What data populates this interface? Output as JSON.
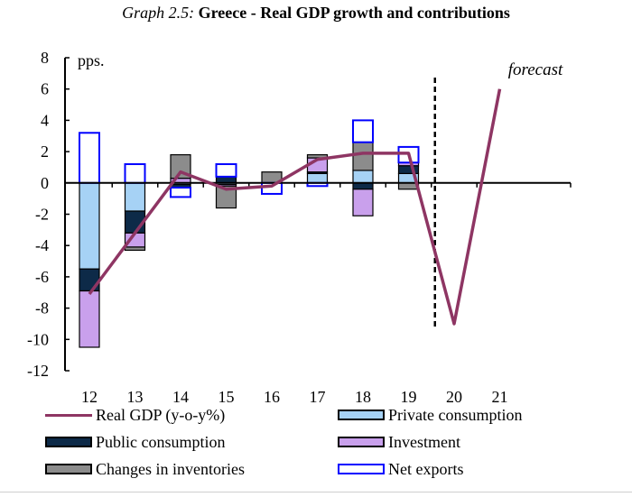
{
  "title": {
    "prefix": "Graph 2.5:",
    "main": "Greece - Real GDP growth and contributions"
  },
  "colors": {
    "private_consumption": "#a6d2f5",
    "public_consumption": "#0d2a48",
    "investment": "#c9a0ec",
    "changes_in_inventories": "#8c8c8c",
    "net_exports": "#ffffff",
    "net_exports_border": "#0000ff",
    "real_gdp_line": "#8e3563"
  },
  "chart_data": {
    "type": "bar",
    "stacked": true,
    "unit_label": "pps.",
    "annotation": "forecast",
    "forecast_divider_after": "19",
    "categories": [
      "12",
      "13",
      "14",
      "15",
      "16",
      "17",
      "18",
      "19",
      "20",
      "21"
    ],
    "ylim": [
      -12,
      8
    ],
    "yticks": [
      8,
      6,
      4,
      2,
      0,
      -2,
      -4,
      -6,
      -8,
      -10,
      -12
    ],
    "series": [
      {
        "name": "Private consumption",
        "key": "private_consumption",
        "kind": "bar",
        "values": [
          -5.5,
          -1.8,
          -0.1,
          -0.1,
          0,
          0.6,
          0.8,
          0.6,
          null,
          null
        ]
      },
      {
        "name": "Public consumption",
        "key": "public_consumption",
        "kind": "bar",
        "values": [
          -1.4,
          -1.4,
          -0.2,
          0.4,
          0,
          0.1,
          -0.4,
          0.5,
          null,
          null
        ]
      },
      {
        "name": "Investment",
        "key": "investment",
        "kind": "bar",
        "values": [
          -3.6,
          -0.9,
          0.3,
          -0.1,
          0,
          0.9,
          -1.7,
          0.2,
          null,
          null
        ]
      },
      {
        "name": "Changes in inventories",
        "key": "changes_in_inventories",
        "kind": "bar",
        "values": [
          0,
          -0.2,
          1.5,
          -1.4,
          0.7,
          0.2,
          1.8,
          -0.4,
          null,
          null
        ]
      },
      {
        "name": "Net exports",
        "key": "net_exports",
        "kind": "bar",
        "values": [
          3.2,
          1.2,
          -0.6,
          0.8,
          -0.7,
          -0.2,
          1.4,
          1.0,
          null,
          null
        ]
      },
      {
        "name": "Real GDP (y-o-y%)",
        "key": "real_gdp_line",
        "kind": "line",
        "values": [
          -7.1,
          -3.2,
          0.7,
          -0.4,
          -0.2,
          1.5,
          1.9,
          1.9,
          -9.0,
          6.0
        ]
      }
    ]
  },
  "legend": [
    {
      "label": "Real GDP (y-o-y%)",
      "key": "real_gdp_line",
      "style": "line"
    },
    {
      "label": "Private consumption",
      "key": "private_consumption",
      "style": "box"
    },
    {
      "label": "Public consumption",
      "key": "public_consumption",
      "style": "box"
    },
    {
      "label": "Investment",
      "key": "investment",
      "style": "box"
    },
    {
      "label": "Changes in inventories",
      "key": "changes_in_inventories",
      "style": "box"
    },
    {
      "label": "Net exports",
      "key": "net_exports",
      "style": "box"
    }
  ]
}
